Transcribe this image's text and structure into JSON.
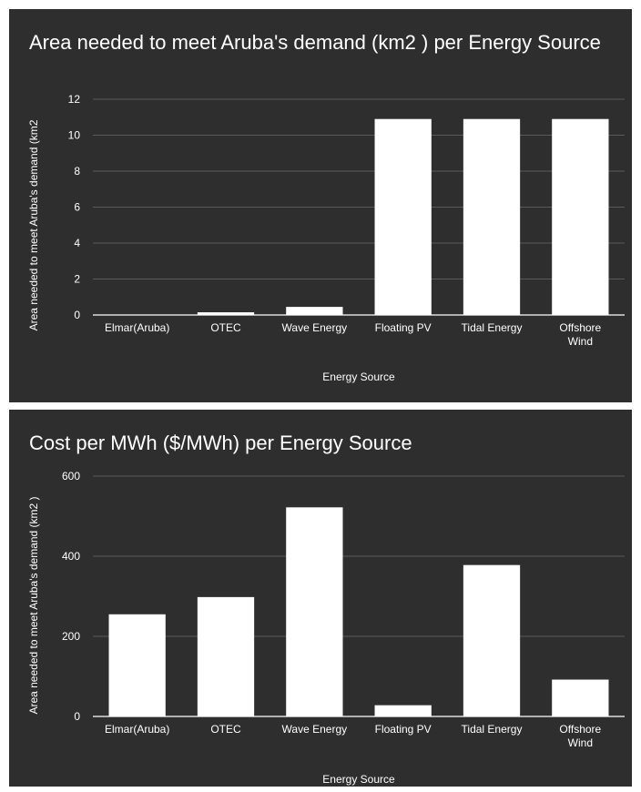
{
  "colors": {
    "background": "#2e2e2e",
    "bar": "#ffffff",
    "text": "#ffffff",
    "grid": "#5a5a5a",
    "axis": "#ffffff"
  },
  "chart_data": [
    {
      "type": "bar",
      "title": "Area needed to meet Aruba's demand (km2 )  per Energy Source",
      "xlabel": "Energy Source",
      "ylabel": "Area needed to meet Aruba's demand (km2",
      "categories": [
        "Elmar(Aruba)",
        "OTEC",
        "Wave Energy",
        "Floating PV",
        "Tidal Energy",
        "Offshore Wind"
      ],
      "values": [
        0,
        0.15,
        0.45,
        10.9,
        10.9,
        10.9
      ],
      "ylim": [
        0,
        12
      ],
      "yticks": [
        0,
        2,
        4,
        6,
        8,
        10,
        12
      ],
      "grid": true
    },
    {
      "type": "bar",
      "title": "Cost per MWh ($/MWh) per Energy Source",
      "xlabel": "Energy Source",
      "ylabel": "Area needed to meet Aruba's demand (km2 )",
      "categories": [
        "Elmar(Aruba)",
        "OTEC",
        "Wave Energy",
        "Floating PV",
        "Tidal Energy",
        "Offshore Wind"
      ],
      "values": [
        255,
        298,
        522,
        28,
        378,
        92
      ],
      "ylim": [
        0,
        600
      ],
      "yticks": [
        0,
        200,
        400,
        600
      ],
      "grid": true
    }
  ]
}
